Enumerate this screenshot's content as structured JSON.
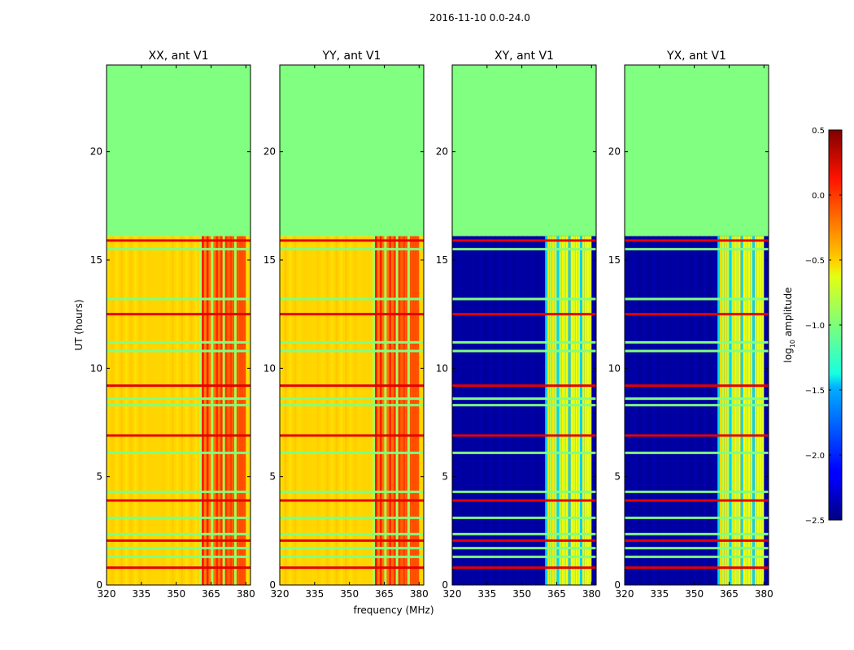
{
  "figure": {
    "suptitle": "2016-11-10 0.0-24.0",
    "xlabel": "frequency (MHz)",
    "ylabel": "UT (hours)",
    "colorbar_label_prefix": "log",
    "colorbar_label_sub": "10",
    "colorbar_label_suffix": " amplitude"
  },
  "chart_data": {
    "type": "heatmap",
    "panels": [
      {
        "title": "XX, ant V1",
        "kind": "parallel"
      },
      {
        "title": "YY, ant V1",
        "kind": "parallel"
      },
      {
        "title": "XY, ant V1",
        "kind": "cross"
      },
      {
        "title": "YX, ant V1",
        "kind": "cross"
      }
    ],
    "x": {
      "label": "frequency (MHz)",
      "range": [
        320,
        382
      ],
      "ticks": [
        320,
        335,
        350,
        365,
        380
      ]
    },
    "y": {
      "label": "UT (hours)",
      "range": [
        0,
        24
      ],
      "ticks": [
        0,
        5,
        10,
        15,
        20
      ]
    },
    "colorbar": {
      "label": "log10 amplitude",
      "range": [
        -2.5,
        0.5
      ],
      "ticks": [
        -2.5,
        -2.0,
        -1.5,
        -1.0,
        -0.5,
        0.0,
        0.5
      ],
      "tick_labels": [
        "−2.5",
        "−2.0",
        "−1.5",
        "−1.0",
        "−0.5",
        "0.0",
        "0.5"
      ],
      "colormap": "jet"
    },
    "data_end_hour": 16.1,
    "fill_value": -1.0,
    "bright_band_mhz": [
      360,
      380
    ],
    "parallel_base_value": -0.5,
    "parallel_band_value": -0.1,
    "cross_base_value": -2.4,
    "cross_band_value": -0.7,
    "flagged_rows_hours": [
      0.8,
      1.3,
      1.7,
      2.05,
      2.35,
      3.1,
      3.9,
      4.3,
      6.1,
      6.9,
      8.3,
      8.6,
      9.2,
      10.8,
      11.2,
      12.5,
      13.2,
      15.5,
      15.9
    ]
  }
}
